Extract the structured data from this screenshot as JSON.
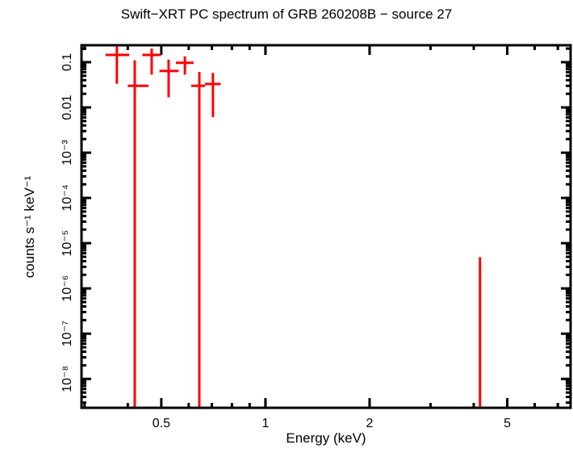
{
  "chart_data": {
    "type": "scatter",
    "title": "Swift−XRT PC spectrum of GRB 260208B − source 27",
    "xlabel": "Energy (keV)",
    "ylabel": "counts s⁻¹ keV⁻¹",
    "xscale": "log",
    "yscale": "log",
    "xlim": [
      0.294,
      7.62
    ],
    "ylim": [
      2.3e-09,
      0.237
    ],
    "x_ticks": [
      {
        "value": 0.5,
        "label": "0.5"
      },
      {
        "value": 1,
        "label": "1"
      },
      {
        "value": 2,
        "label": "2"
      },
      {
        "value": 5,
        "label": "5"
      }
    ],
    "y_ticks": [
      {
        "value": 0.1,
        "label": "0.1"
      },
      {
        "value": 0.01,
        "label": "0.01"
      },
      {
        "value": 0.001,
        "label": "10⁻³"
      },
      {
        "value": 0.0001,
        "label": "10⁻⁴"
      },
      {
        "value": 1e-05,
        "label": "10⁻⁵"
      },
      {
        "value": 1e-06,
        "label": "10⁻⁶"
      },
      {
        "value": 1e-07,
        "label": "10⁻⁷"
      },
      {
        "value": 1e-08,
        "label": "10⁻⁸"
      }
    ],
    "grid": false,
    "legend": null,
    "series": [
      {
        "name": "PC spectrum",
        "color": "#ff0000",
        "points": [
          {
            "x": 0.372,
            "xlo": 0.345,
            "xhi": 0.404,
            "y": 0.145,
            "ylo": 0.0335,
            "yhi": 0.237
          },
          {
            "x": 0.419,
            "xlo": 0.4,
            "xhi": 0.459,
            "y": 0.03,
            "ylo": 2.3e-09,
            "yhi": 0.11
          },
          {
            "x": 0.469,
            "xlo": 0.441,
            "xhi": 0.499,
            "y": 0.145,
            "ylo": 0.053,
            "yhi": 0.2
          },
          {
            "x": 0.525,
            "xlo": 0.494,
            "xhi": 0.561,
            "y": 0.064,
            "ylo": 0.0168,
            "yhi": 0.114
          },
          {
            "x": 0.585,
            "xlo": 0.551,
            "xhi": 0.62,
            "y": 0.097,
            "ylo": 0.053,
            "yhi": 0.135
          },
          {
            "x": 0.644,
            "xlo": 0.61,
            "xhi": 0.669,
            "y": 0.03,
            "ylo": 2.3e-09,
            "yhi": 0.061
          },
          {
            "x": 0.705,
            "xlo": 0.669,
            "xhi": 0.742,
            "y": 0.033,
            "ylo": 0.0061,
            "yhi": 0.058
          },
          {
            "x": 4.17,
            "xlo": 4.17,
            "xhi": 4.17,
            "y": null,
            "ylo": 2.3e-09,
            "yhi": 4.9e-06
          }
        ]
      }
    ]
  }
}
